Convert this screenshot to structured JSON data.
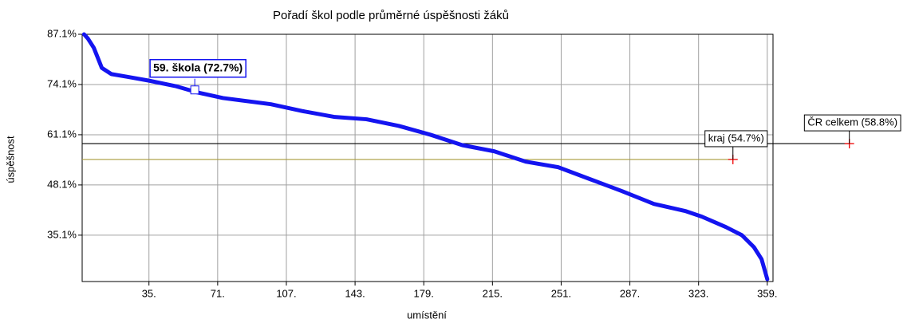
{
  "chart_data": {
    "type": "line",
    "title": "Pořadí škol podle průměrné úspěšnosti žáků",
    "x_label": "umístění",
    "y_label": "úspěšnost",
    "xlim": [
      0,
      362
    ],
    "ylim": [
      23.1,
      87.1
    ],
    "xticks": [
      {
        "value": 35,
        "label": "35."
      },
      {
        "value": 71,
        "label": "71."
      },
      {
        "value": 107,
        "label": "107."
      },
      {
        "value": 143,
        "label": "143."
      },
      {
        "value": 179,
        "label": "179."
      },
      {
        "value": 215,
        "label": "215."
      },
      {
        "value": 251,
        "label": "251."
      },
      {
        "value": 287,
        "label": "287."
      },
      {
        "value": 323,
        "label": "323."
      },
      {
        "value": 359,
        "label": "359."
      }
    ],
    "yticks": [
      {
        "value": 87.1,
        "label": "87.1%"
      },
      {
        "value": 74.1,
        "label": "74.1%"
      },
      {
        "value": 61.1,
        "label": "61.1%"
      },
      {
        "value": 48.1,
        "label": "48.1%"
      },
      {
        "value": 35.1,
        "label": "35.1%"
      }
    ],
    "grid": true,
    "series": [
      {
        "name": "úspěšnost",
        "color": "#1414f0",
        "x": [
          1,
          3,
          6.1,
          10.3,
          15.3,
          23.7,
          35,
          48.8,
          60,
          73.8,
          98.9,
          115.7,
          132.4,
          149,
          165.8,
          182.5,
          199.2,
          216,
          232.7,
          249.4,
          266.1,
          282.9,
          299.6,
          316.4,
          324.7,
          337.3,
          345.7,
          352,
          356,
          359
        ],
        "values": [
          87.1,
          86,
          83.6,
          78.4,
          76.8,
          76.1,
          75.1,
          73.7,
          72.1,
          70.6,
          69.0,
          67.2,
          65.7,
          65.1,
          63.4,
          61.1,
          58.4,
          56.8,
          54.1,
          52.7,
          49.6,
          46.5,
          43.2,
          41.3,
          39.9,
          37.2,
          35.1,
          32.0,
          28.9,
          23.7
        ]
      }
    ],
    "highlight": {
      "label": "59. škola (72.7%)",
      "x": 59,
      "y": 72.7
    },
    "references": [
      {
        "label": "ČR celkem (58.8%)",
        "value": 58.8,
        "x": 402,
        "color": "#000000"
      },
      {
        "label": "kraj (54.7%)",
        "value": 54.7,
        "x": 341,
        "color": "#a89a3a"
      }
    ]
  }
}
